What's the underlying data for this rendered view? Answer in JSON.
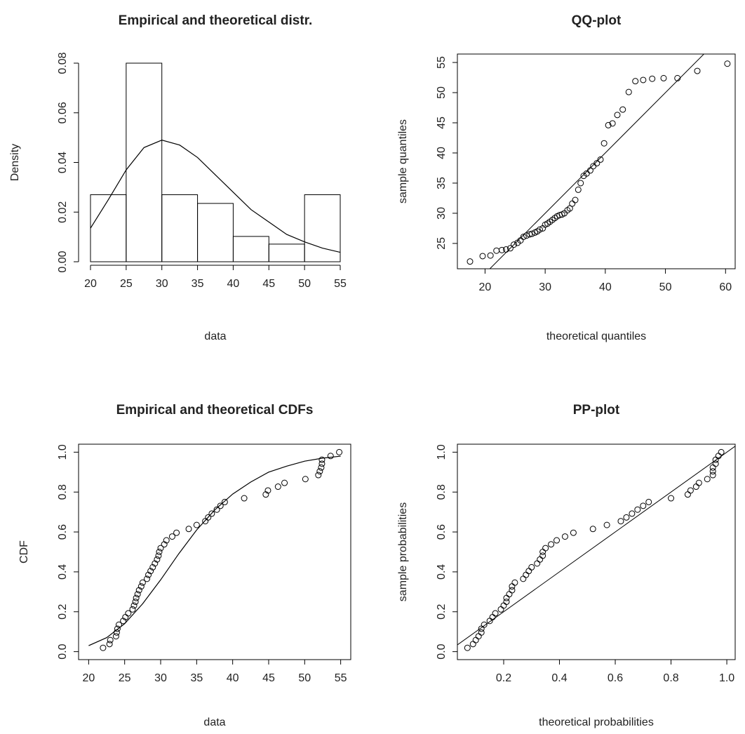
{
  "chart_data": [
    {
      "type": "histogram",
      "title": "Empirical and theoretical distr.",
      "xlabel": "data",
      "ylabel": "Density",
      "bins": [
        20,
        25,
        30,
        35,
        40,
        45,
        50,
        55
      ],
      "values": [
        0.027,
        0.08,
        0.027,
        0.0235,
        0.0102,
        0.0071,
        0.027
      ],
      "curve": {
        "x": [
          20,
          22.5,
          25,
          27.5,
          30,
          32.5,
          35,
          37.5,
          40,
          42.5,
          45,
          47.5,
          50,
          52.5,
          55
        ],
        "values": [
          0.0135,
          0.025,
          0.037,
          0.046,
          0.049,
          0.047,
          0.042,
          0.035,
          0.028,
          0.021,
          0.016,
          0.011,
          0.008,
          0.0055,
          0.0038
        ]
      },
      "xlim": [
        20,
        55
      ],
      "ylim": [
        0,
        0.08
      ],
      "xticks": [
        20,
        25,
        30,
        35,
        40,
        45,
        50,
        55
      ],
      "yticks": [
        {
          "value": 0,
          "label": "0.00"
        },
        {
          "value": 0.02,
          "label": "0.02"
        },
        {
          "value": 0.04,
          "label": "0.04"
        },
        {
          "value": 0.06,
          "label": "0.06"
        },
        {
          "value": 0.08,
          "label": "0.08"
        }
      ]
    },
    {
      "type": "scatter",
      "title": "QQ-plot",
      "xlabel": "theoretical quantiles",
      "ylabel": "sample quantiles",
      "diagonal": true,
      "x": [
        17.5,
        19.6,
        20.9,
        21.9,
        22.8,
        23.5,
        24.2,
        24.8,
        25.4,
        25.9,
        26.4,
        26.9,
        27.4,
        27.8,
        28.3,
        28.7,
        29.1,
        29.6,
        30.0,
        30.4,
        30.8,
        31.2,
        31.6,
        32.0,
        32.4,
        32.8,
        33.2,
        33.7,
        34.1,
        34.5,
        35.0,
        35.5,
        35.9,
        36.4,
        36.9,
        37.5,
        38.0,
        38.6,
        39.2,
        39.8,
        40.5,
        41.2,
        42.0,
        42.9,
        43.9,
        45.0,
        46.3,
        47.8,
        49.7,
        52.0,
        55.3,
        60.3
      ],
      "values": [
        22.0,
        22.9,
        23.0,
        23.8,
        23.9,
        24.0,
        24.2,
        24.8,
        25.1,
        25.5,
        26.1,
        26.3,
        26.5,
        26.6,
        26.8,
        27.0,
        27.3,
        27.5,
        28.1,
        28.3,
        28.6,
        28.9,
        29.2,
        29.5,
        29.7,
        29.8,
        30.0,
        30.5,
        30.8,
        31.6,
        32.2,
        33.9,
        35.0,
        36.2,
        36.6,
        37.1,
        37.8,
        38.3,
        38.9,
        41.6,
        44.6,
        44.9,
        46.3,
        47.2,
        50.1,
        51.9,
        52.1,
        52.3,
        52.4,
        52.4,
        53.6,
        54.8
      ],
      "xlim": [
        15.4,
        61.6
      ],
      "ylim": [
        20.8,
        56.4
      ],
      "xticks": [
        20,
        30,
        40,
        50,
        60
      ],
      "yticks": [
        25,
        30,
        35,
        40,
        45,
        50,
        55
      ]
    },
    {
      "type": "scatter",
      "title": "Empirical and theoretical CDFs",
      "xlabel": "data",
      "ylabel": "CDF",
      "x": [
        22.0,
        22.9,
        23.0,
        23.8,
        23.9,
        24.0,
        24.2,
        24.8,
        25.1,
        25.5,
        26.1,
        26.3,
        26.5,
        26.6,
        26.8,
        27.0,
        27.3,
        27.5,
        28.1,
        28.3,
        28.6,
        28.9,
        29.2,
        29.5,
        29.7,
        29.8,
        30.0,
        30.5,
        30.8,
        31.6,
        32.2,
        33.9,
        35.0,
        36.2,
        36.6,
        37.1,
        37.8,
        38.3,
        38.9,
        41.6,
        44.6,
        44.9,
        46.3,
        47.2,
        50.1,
        51.9,
        52.1,
        52.3,
        52.4,
        52.4,
        53.6,
        54.8
      ],
      "values": [
        0.019,
        0.038,
        0.058,
        0.077,
        0.096,
        0.115,
        0.135,
        0.154,
        0.173,
        0.192,
        0.212,
        0.231,
        0.25,
        0.269,
        0.288,
        0.308,
        0.327,
        0.346,
        0.365,
        0.385,
        0.404,
        0.423,
        0.442,
        0.462,
        0.481,
        0.5,
        0.519,
        0.538,
        0.558,
        0.577,
        0.596,
        0.615,
        0.635,
        0.654,
        0.673,
        0.692,
        0.712,
        0.731,
        0.75,
        0.769,
        0.788,
        0.808,
        0.827,
        0.846,
        0.865,
        0.885,
        0.904,
        0.923,
        0.942,
        0.962,
        0.981,
        1
      ],
      "curve": {
        "x": [
          20,
          22.5,
          25,
          27.5,
          30,
          32.5,
          35,
          37.5,
          40,
          42.5,
          45,
          47.5,
          50,
          52.5,
          55
        ],
        "values": [
          0.03,
          0.07,
          0.14,
          0.24,
          0.36,
          0.49,
          0.61,
          0.71,
          0.79,
          0.85,
          0.9,
          0.93,
          0.955,
          0.97,
          0.98
        ]
      },
      "xlim": [
        18.6,
        56.4
      ],
      "ylim": [
        -0.04,
        1.04
      ],
      "xticks": [
        20,
        25,
        30,
        35,
        40,
        45,
        50,
        55
      ],
      "yticks": [
        {
          "value": 0,
          "label": "0.0"
        },
        0.2,
        0.4,
        0.6,
        0.8,
        {
          "value": 1,
          "label": "1.0"
        }
      ]
    },
    {
      "type": "scatter",
      "title": "PP-plot",
      "xlabel": "theoretical probabilities",
      "ylabel": "sample probabilities",
      "diagonal": true,
      "x": [
        0.07,
        0.09,
        0.1,
        0.11,
        0.12,
        0.12,
        0.13,
        0.15,
        0.16,
        0.17,
        0.19,
        0.2,
        0.21,
        0.21,
        0.22,
        0.23,
        0.23,
        0.24,
        0.27,
        0.28,
        0.29,
        0.3,
        0.32,
        0.33,
        0.34,
        0.34,
        0.35,
        0.37,
        0.39,
        0.42,
        0.45,
        0.52,
        0.57,
        0.62,
        0.64,
        0.66,
        0.68,
        0.7,
        0.72,
        0.8,
        0.86,
        0.87,
        0.89,
        0.9,
        0.93,
        0.95,
        0.95,
        0.95,
        0.96,
        0.96,
        0.97,
        0.98
      ],
      "values": [
        0.019,
        0.038,
        0.058,
        0.077,
        0.096,
        0.115,
        0.135,
        0.154,
        0.173,
        0.192,
        0.212,
        0.231,
        0.25,
        0.269,
        0.288,
        0.308,
        0.327,
        0.346,
        0.365,
        0.385,
        0.404,
        0.423,
        0.442,
        0.462,
        0.481,
        0.5,
        0.519,
        0.538,
        0.558,
        0.577,
        0.596,
        0.615,
        0.635,
        0.654,
        0.673,
        0.692,
        0.712,
        0.731,
        0.75,
        0.769,
        0.788,
        0.808,
        0.827,
        0.846,
        0.865,
        0.885,
        0.904,
        0.923,
        0.942,
        0.962,
        0.981,
        1
      ],
      "xlim": [
        0.034,
        1.03
      ],
      "ylim": [
        -0.04,
        1.04
      ],
      "xticks": [
        0.2,
        0.4,
        0.6,
        0.8,
        {
          "value": 1,
          "label": "1.0"
        }
      ],
      "yticks": [
        {
          "value": 0,
          "label": "0.0"
        },
        0.2,
        0.4,
        0.6,
        0.8,
        {
          "value": 1,
          "label": "1.0"
        }
      ]
    }
  ]
}
